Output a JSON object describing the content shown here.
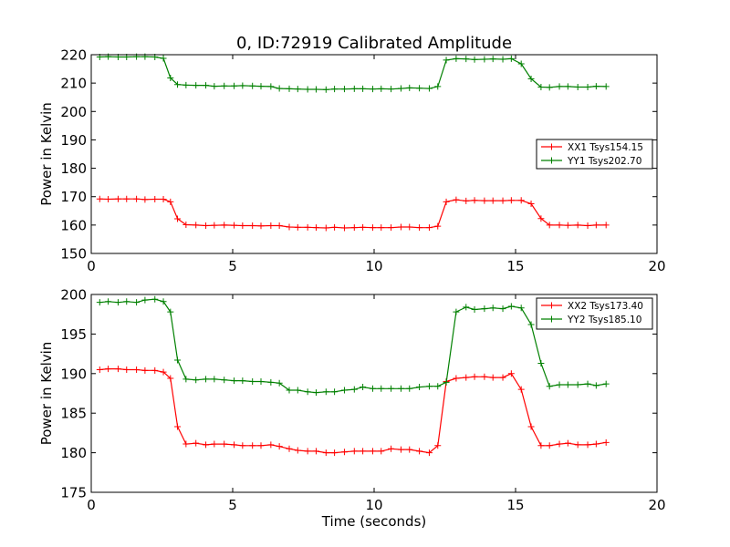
{
  "title": "0, ID:72919 Calibrated Amplitude",
  "chart_data": [
    {
      "type": "line",
      "title": "0, ID:72919 Calibrated Amplitude",
      "xlabel": "",
      "ylabel": "Power in Kelvin",
      "xlim": [
        0,
        20
      ],
      "ylim": [
        150,
        220
      ],
      "xticks": [
        "0",
        "5",
        "10",
        "15",
        "20"
      ],
      "yticks": [
        "150",
        "160",
        "170",
        "180",
        "190",
        "200",
        "210",
        "220"
      ],
      "grid": false,
      "legend_position": "center-right",
      "x": [
        0.3,
        0.6,
        0.95,
        1.25,
        1.6,
        1.9,
        2.25,
        2.55,
        2.8,
        3.05,
        3.35,
        3.7,
        4.05,
        4.35,
        4.7,
        5.05,
        5.35,
        5.7,
        6.0,
        6.35,
        6.65,
        7.0,
        7.3,
        7.65,
        7.95,
        8.3,
        8.6,
        8.95,
        9.3,
        9.6,
        9.95,
        10.25,
        10.6,
        10.95,
        11.25,
        11.6,
        11.95,
        12.25,
        12.55,
        12.9,
        13.25,
        13.55,
        13.9,
        14.2,
        14.55,
        14.85,
        15.2,
        15.55,
        15.9,
        16.2,
        16.55,
        16.85,
        17.2,
        17.55,
        17.85,
        18.2
      ],
      "series": [
        {
          "name": "XX1 Tsys154.15",
          "color": "#ff0000",
          "values": [
            169.2,
            169.1,
            169.2,
            169.2,
            169.2,
            169.0,
            169.1,
            169.1,
            168.2,
            162.2,
            160.1,
            160.0,
            159.8,
            159.9,
            160.0,
            159.9,
            159.8,
            159.8,
            159.7,
            159.8,
            159.8,
            159.3,
            159.2,
            159.2,
            159.1,
            159.0,
            159.2,
            159.0,
            159.1,
            159.2,
            159.1,
            159.1,
            159.1,
            159.3,
            159.3,
            159.1,
            159.1,
            159.6,
            168.2,
            168.9,
            168.5,
            168.7,
            168.6,
            168.6,
            168.6,
            168.7,
            168.7,
            167.5,
            162.3,
            160.0,
            160.0,
            159.9,
            160.0,
            159.8,
            160.0,
            160.0
          ]
        },
        {
          "name": "YY1 Tsys202.70",
          "color": "#008000",
          "values": [
            219.2,
            219.3,
            219.2,
            219.2,
            219.3,
            219.3,
            219.2,
            218.7,
            211.8,
            209.5,
            209.3,
            209.2,
            209.2,
            208.9,
            209.0,
            209.0,
            209.1,
            209.0,
            208.9,
            208.8,
            208.1,
            208.0,
            207.9,
            207.8,
            207.8,
            207.7,
            207.9,
            207.9,
            208.0,
            208.0,
            207.9,
            208.0,
            207.9,
            208.1,
            208.3,
            208.2,
            208.1,
            208.8,
            218.1,
            218.6,
            218.5,
            218.3,
            218.4,
            218.5,
            218.4,
            218.6,
            216.8,
            211.5,
            208.6,
            208.5,
            208.8,
            208.8,
            208.6,
            208.6,
            208.9,
            208.8
          ]
        }
      ]
    },
    {
      "type": "line",
      "title": "",
      "xlabel": "Time (seconds)",
      "ylabel": "Power in Kelvin",
      "xlim": [
        0,
        20
      ],
      "ylim": [
        175,
        200
      ],
      "xticks": [
        "0",
        "5",
        "10",
        "15",
        "20"
      ],
      "yticks": [
        "175",
        "180",
        "185",
        "190",
        "195",
        "200"
      ],
      "grid": false,
      "legend_position": "top-right",
      "x": [
        0.3,
        0.6,
        0.95,
        1.25,
        1.6,
        1.9,
        2.25,
        2.55,
        2.8,
        3.05,
        3.35,
        3.7,
        4.05,
        4.35,
        4.7,
        5.05,
        5.35,
        5.7,
        6.0,
        6.35,
        6.65,
        7.0,
        7.3,
        7.65,
        7.95,
        8.3,
        8.6,
        8.95,
        9.3,
        9.6,
        9.95,
        10.25,
        10.6,
        10.95,
        11.25,
        11.6,
        11.95,
        12.25,
        12.55,
        12.9,
        13.25,
        13.55,
        13.9,
        14.2,
        14.55,
        14.85,
        15.2,
        15.55,
        15.9,
        16.2,
        16.55,
        16.85,
        17.2,
        17.55,
        17.85,
        18.2
      ],
      "series": [
        {
          "name": "XX2 Tsys173.40",
          "color": "#ff0000",
          "values": [
            190.5,
            190.6,
            190.6,
            190.5,
            190.5,
            190.4,
            190.4,
            190.2,
            189.4,
            183.3,
            181.1,
            181.2,
            181.0,
            181.1,
            181.1,
            181.0,
            180.9,
            180.9,
            180.9,
            181.0,
            180.8,
            180.5,
            180.3,
            180.2,
            180.2,
            180.0,
            180.0,
            180.1,
            180.2,
            180.2,
            180.2,
            180.2,
            180.5,
            180.4,
            180.4,
            180.2,
            180.0,
            180.9,
            189.0,
            189.4,
            189.5,
            189.6,
            189.6,
            189.5,
            189.5,
            190.0,
            188.0,
            183.3,
            180.9,
            180.9,
            181.1,
            181.2,
            181.0,
            181.0,
            181.1,
            181.3
          ]
        },
        {
          "name": "YY2 Tsys185.10",
          "color": "#008000",
          "values": [
            199.0,
            199.1,
            199.0,
            199.1,
            199.0,
            199.3,
            199.4,
            199.1,
            197.8,
            191.7,
            189.3,
            189.2,
            189.3,
            189.3,
            189.2,
            189.1,
            189.1,
            189.0,
            189.0,
            188.9,
            188.8,
            187.9,
            187.9,
            187.7,
            187.6,
            187.7,
            187.7,
            187.9,
            188.0,
            188.3,
            188.1,
            188.1,
            188.1,
            188.1,
            188.1,
            188.3,
            188.4,
            188.4,
            188.9,
            197.8,
            198.4,
            198.1,
            198.2,
            198.3,
            198.2,
            198.5,
            198.3,
            196.2,
            191.3,
            188.4,
            188.6,
            188.6,
            188.6,
            188.7,
            188.5,
            188.7
          ]
        }
      ]
    }
  ]
}
